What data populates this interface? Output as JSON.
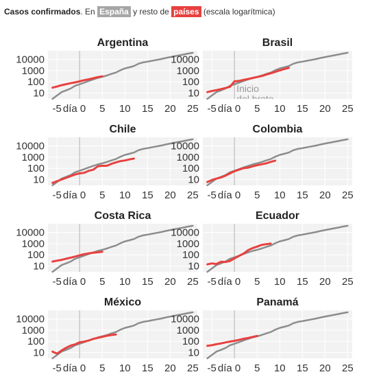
{
  "header": {
    "lead": "Casos confirmados",
    "mid1": ". En",
    "tag_spain": "España",
    "mid2": "y resto de",
    "tag_countries": "países",
    "tail": "(escala logarítmica)"
  },
  "colors": {
    "spain": "#8c8c8c",
    "country": "#e8403f",
    "panel_bg": "#f2f2f2",
    "grid": "#ffffff",
    "zero_line": "#c8c8c8"
  },
  "annotation": "Inicio del brote",
  "chart_data": [
    {
      "type": "line",
      "title": "Argentina",
      "x_tick_labels": [
        "-5",
        "día 0",
        "5",
        "10",
        "15",
        "20",
        "25"
      ],
      "xlim": [
        -7,
        26
      ],
      "ylim": [
        3,
        60000
      ],
      "y_scale": "log",
      "y_ticks": [
        10,
        100,
        1000,
        10000
      ],
      "grid": true,
      "series": [
        {
          "name": "España",
          "x": [
            -6,
            -5,
            -4,
            -3,
            -2,
            -1,
            0,
            1,
            2,
            3,
            4,
            5,
            6,
            7,
            8,
            9,
            10,
            11,
            12,
            13,
            14,
            15,
            16,
            17,
            18,
            19,
            20,
            21,
            22,
            23,
            24,
            25
          ],
          "y": [
            3,
            6,
            12,
            17,
            25,
            45,
            60,
            85,
            120,
            165,
            225,
            280,
            370,
            510,
            680,
            1100,
            1600,
            2000,
            2600,
            4200,
            5500,
            6400,
            7700,
            9200,
            11000,
            13500,
            16500,
            19500,
            23500,
            28000,
            34000,
            40000
          ]
        },
        {
          "name": "Argentina",
          "x": [
            -6,
            -5,
            -4,
            -3,
            -2,
            -1,
            0,
            1,
            2,
            3,
            4,
            5
          ],
          "y": [
            30,
            38,
            50,
            62,
            75,
            90,
            110,
            140,
            170,
            210,
            265,
            310
          ]
        }
      ]
    },
    {
      "type": "line",
      "title": "Brasil",
      "x_tick_labels": [
        "-5",
        "día 0",
        "5",
        "10",
        "15",
        "20",
        "25"
      ],
      "xlim": [
        -7,
        26
      ],
      "ylim": [
        3,
        60000
      ],
      "y_scale": "log",
      "y_ticks": [
        10,
        100,
        1000,
        10000
      ],
      "grid": true,
      "series": [
        {
          "name": "España",
          "x": [
            -6,
            -5,
            -4,
            -3,
            -2,
            -1,
            0,
            1,
            2,
            3,
            4,
            5,
            6,
            7,
            8,
            9,
            10,
            11,
            12,
            13,
            14,
            15,
            16,
            17,
            18,
            19,
            20,
            21,
            22,
            23,
            24,
            25
          ],
          "y": [
            3,
            6,
            12,
            17,
            25,
            45,
            60,
            85,
            120,
            165,
            225,
            280,
            370,
            510,
            680,
            1100,
            1600,
            2000,
            2600,
            4200,
            5500,
            6400,
            7700,
            9200,
            11000,
            13500,
            16500,
            19500,
            23500,
            28000,
            34000,
            40000
          ]
        },
        {
          "name": "Brasil",
          "x": [
            -6,
            -5,
            -4,
            -3,
            -2,
            -1,
            0,
            1,
            2,
            3,
            4,
            5,
            6,
            7,
            8,
            9,
            10,
            11,
            12
          ],
          "y": [
            12,
            15,
            18,
            22,
            28,
            35,
            110,
            120,
            150,
            180,
            220,
            270,
            330,
            440,
            580,
            780,
            1050,
            1400,
            1800
          ]
        }
      ]
    },
    {
      "type": "line",
      "title": "Chile",
      "x_tick_labels": [
        "-5",
        "día 0",
        "5",
        "10",
        "15",
        "20",
        "25"
      ],
      "xlim": [
        -7,
        26
      ],
      "ylim": [
        3,
        60000
      ],
      "y_scale": "log",
      "y_ticks": [
        10,
        100,
        1000,
        10000
      ],
      "grid": true,
      "series": [
        {
          "name": "España",
          "x": [
            -6,
            -5,
            -4,
            -3,
            -2,
            -1,
            0,
            1,
            2,
            3,
            4,
            5,
            6,
            7,
            8,
            9,
            10,
            11,
            12,
            13,
            14,
            15,
            16,
            17,
            18,
            19,
            20,
            21,
            22,
            23,
            24,
            25
          ],
          "y": [
            3,
            6,
            12,
            17,
            25,
            45,
            60,
            85,
            120,
            165,
            225,
            280,
            370,
            510,
            680,
            1100,
            1600,
            2000,
            2600,
            4200,
            5500,
            6400,
            7700,
            9200,
            11000,
            13500,
            16500,
            19500,
            23500,
            28000,
            34000,
            40000
          ]
        },
        {
          "name": "Chile",
          "x": [
            -6,
            -5,
            -4,
            -3,
            -2,
            -1,
            0,
            1,
            2,
            3,
            4,
            5,
            6,
            7,
            8,
            9,
            10,
            11,
            12
          ],
          "y": [
            5,
            7,
            10,
            14,
            20,
            28,
            35,
            40,
            60,
            75,
            150,
            170,
            170,
            250,
            340,
            440,
            500,
            630,
            750
          ]
        }
      ]
    },
    {
      "type": "line",
      "title": "Colombia",
      "x_tick_labels": [
        "-5",
        "día 0",
        "5",
        "10",
        "15",
        "20",
        "25"
      ],
      "xlim": [
        -7,
        26
      ],
      "ylim": [
        3,
        60000
      ],
      "y_scale": "log",
      "y_ticks": [
        10,
        100,
        1000,
        10000
      ],
      "grid": true,
      "series": [
        {
          "name": "España",
          "x": [
            -6,
            -5,
            -4,
            -3,
            -2,
            -1,
            0,
            1,
            2,
            3,
            4,
            5,
            6,
            7,
            8,
            9,
            10,
            11,
            12,
            13,
            14,
            15,
            16,
            17,
            18,
            19,
            20,
            21,
            22,
            23,
            24,
            25
          ],
          "y": [
            3,
            6,
            12,
            17,
            25,
            45,
            60,
            85,
            120,
            165,
            225,
            280,
            370,
            510,
            680,
            1100,
            1600,
            2000,
            2600,
            4200,
            5500,
            6400,
            7700,
            9200,
            11000,
            13500,
            16500,
            19500,
            23500,
            28000,
            34000,
            40000
          ]
        },
        {
          "name": "Colombia",
          "x": [
            -6,
            -5,
            -4,
            -3,
            -2,
            -1,
            0,
            1,
            2,
            3,
            4,
            5,
            6,
            7,
            8,
            9
          ],
          "y": [
            6,
            9,
            12,
            15,
            22,
            35,
            55,
            75,
            105,
            115,
            150,
            190,
            230,
            280,
            380,
            480
          ]
        }
      ]
    },
    {
      "type": "line",
      "title": "Costa Rica",
      "x_tick_labels": [
        "-5",
        "día 0",
        "5",
        "10",
        "15",
        "20",
        "25"
      ],
      "xlim": [
        -7,
        26
      ],
      "ylim": [
        3,
        60000
      ],
      "y_scale": "log",
      "y_ticks": [
        10,
        100,
        1000,
        10000
      ],
      "grid": true,
      "series": [
        {
          "name": "España",
          "x": [
            -6,
            -5,
            -4,
            -3,
            -2,
            -1,
            0,
            1,
            2,
            3,
            4,
            5,
            6,
            7,
            8,
            9,
            10,
            11,
            12,
            13,
            14,
            15,
            16,
            17,
            18,
            19,
            20,
            21,
            22,
            23,
            24,
            25
          ],
          "y": [
            3,
            6,
            12,
            17,
            25,
            45,
            60,
            85,
            120,
            165,
            225,
            280,
            370,
            510,
            680,
            1100,
            1600,
            2000,
            2600,
            4200,
            5500,
            6400,
            7700,
            9200,
            11000,
            13500,
            16500,
            19500,
            23500,
            28000,
            34000,
            40000
          ]
        },
        {
          "name": "Costa Rica",
          "x": [
            -6,
            -5,
            -4,
            -3,
            -2,
            -1,
            0,
            1,
            2,
            3,
            4,
            5
          ],
          "y": [
            25,
            30,
            35,
            45,
            55,
            70,
            90,
            115,
            135,
            155,
            170,
            190
          ]
        }
      ]
    },
    {
      "type": "line",
      "title": "Ecuador",
      "x_tick_labels": [
        "-5",
        "día 0",
        "5",
        "10",
        "15",
        "20",
        "25"
      ],
      "xlim": [
        -7,
        26
      ],
      "ylim": [
        3,
        60000
      ],
      "y_scale": "log",
      "y_ticks": [
        10,
        100,
        1000,
        10000
      ],
      "grid": true,
      "series": [
        {
          "name": "España",
          "x": [
            -6,
            -5,
            -4,
            -3,
            -2,
            -1,
            0,
            1,
            2,
            3,
            4,
            5,
            6,
            7,
            8,
            9,
            10,
            11,
            12,
            13,
            14,
            15,
            16,
            17,
            18,
            19,
            20,
            21,
            22,
            23,
            24,
            25
          ],
          "y": [
            3,
            6,
            12,
            17,
            25,
            45,
            60,
            85,
            120,
            165,
            225,
            280,
            370,
            510,
            680,
            1100,
            1600,
            2000,
            2600,
            4200,
            5500,
            6400,
            7700,
            9200,
            11000,
            13500,
            16500,
            19500,
            23500,
            28000,
            34000,
            40000
          ]
        },
        {
          "name": "Ecuador",
          "x": [
            -6,
            -5,
            -4,
            -3,
            -2,
            -1,
            0,
            1,
            2,
            3,
            4,
            5,
            6,
            7,
            8
          ],
          "y": [
            14,
            17,
            15,
            24,
            23,
            28,
            48,
            80,
            130,
            260,
            400,
            550,
            780,
            900,
            1000
          ]
        }
      ]
    },
    {
      "type": "line",
      "title": "México",
      "x_tick_labels": [
        "-5",
        "día 0",
        "5",
        "10",
        "15",
        "20",
        "25"
      ],
      "xlim": [
        -7,
        26
      ],
      "ylim": [
        3,
        60000
      ],
      "y_scale": "log",
      "y_ticks": [
        10,
        100,
        1000,
        10000
      ],
      "grid": true,
      "series": [
        {
          "name": "España",
          "x": [
            -6,
            -5,
            -4,
            -3,
            -2,
            -1,
            0,
            1,
            2,
            3,
            4,
            5,
            6,
            7,
            8,
            9,
            10,
            11,
            12,
            13,
            14,
            15,
            16,
            17,
            18,
            19,
            20,
            21,
            22,
            23,
            24,
            25
          ],
          "y": [
            3,
            6,
            12,
            17,
            25,
            45,
            60,
            85,
            120,
            165,
            225,
            280,
            370,
            510,
            680,
            1100,
            1600,
            2000,
            2600,
            4200,
            5500,
            6400,
            7700,
            9200,
            11000,
            13500,
            16500,
            19500,
            23500,
            28000,
            34000,
            40000
          ]
        },
        {
          "name": "México",
          "x": [
            -6,
            -5,
            -4,
            -3,
            -2,
            -1,
            0,
            1,
            2,
            3,
            4,
            5,
            6,
            7,
            8
          ],
          "y": [
            12,
            8,
            15,
            26,
            41,
            53,
            82,
            93,
            118,
            164,
            203,
            251,
            316,
            370,
            405
          ]
        }
      ]
    },
    {
      "type": "line",
      "title": "Panamá",
      "x_tick_labels": [
        "-5",
        "día 0",
        "5",
        "10",
        "15",
        "20",
        "25"
      ],
      "xlim": [
        -7,
        26
      ],
      "ylim": [
        3,
        60000
      ],
      "y_scale": "log",
      "y_ticks": [
        10,
        100,
        1000,
        10000
      ],
      "grid": true,
      "series": [
        {
          "name": "España",
          "x": [
            -6,
            -5,
            -4,
            -3,
            -2,
            -1,
            0,
            1,
            2,
            3,
            4,
            5,
            6,
            7,
            8,
            9,
            10,
            11,
            12,
            13,
            14,
            15,
            16,
            17,
            18,
            19,
            20,
            21,
            22,
            23,
            24,
            25
          ],
          "y": [
            3,
            6,
            12,
            17,
            25,
            45,
            60,
            85,
            120,
            165,
            225,
            280,
            370,
            510,
            680,
            1100,
            1600,
            2000,
            2600,
            4200,
            5500,
            6400,
            7700,
            9200,
            11000,
            13500,
            16500,
            19500,
            23500,
            28000,
            34000,
            40000
          ]
        },
        {
          "name": "Panamá",
          "x": [
            -6,
            -5,
            -4,
            -3,
            -2,
            -1,
            0,
            1,
            2,
            3,
            4,
            5
          ],
          "y": [
            40,
            45,
            55,
            65,
            80,
            95,
            110,
            135,
            170,
            200,
            245,
            300
          ]
        }
      ]
    }
  ]
}
